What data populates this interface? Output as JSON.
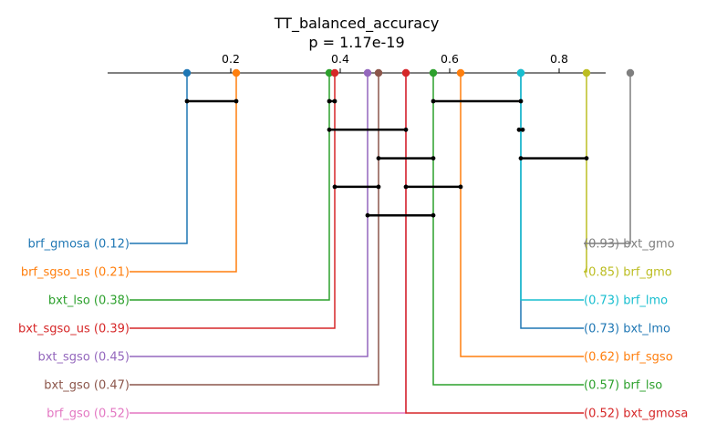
{
  "chart_data": {
    "type": "critical-difference-diagram",
    "title": "TT_balanced_accuracy",
    "subtitle": "p = 1.17e-19",
    "axis": {
      "ticks": [
        0.2,
        0.4,
        0.6,
        0.8
      ],
      "tick_labels": [
        "0.2",
        "0.4",
        "0.6",
        "0.8"
      ]
    },
    "methods": [
      {
        "name": "brf_gmosa",
        "score": 0.12,
        "label": "brf_gmosa (0.12)",
        "color": "#1f77b4",
        "side": "left"
      },
      {
        "name": "brf_sgso_us",
        "score": 0.21,
        "label": "brf_sgso_us (0.21)",
        "color": "#ff7f0e",
        "side": "left"
      },
      {
        "name": "bxt_lso",
        "score": 0.38,
        "label": "bxt_lso (0.38)",
        "color": "#2ca02c",
        "side": "left"
      },
      {
        "name": "bxt_sgso_us",
        "score": 0.39,
        "label": "bxt_sgso_us (0.39)",
        "color": "#d62728",
        "side": "left"
      },
      {
        "name": "bxt_sgso",
        "score": 0.45,
        "label": "bxt_sgso (0.45)",
        "color": "#9467bd",
        "side": "left"
      },
      {
        "name": "bxt_gso",
        "score": 0.47,
        "label": "bxt_gso (0.47)",
        "color": "#8c564b",
        "side": "left"
      },
      {
        "name": "brf_gso",
        "score": 0.52,
        "label": "brf_gso (0.52)",
        "color": "#e377c2",
        "side": "left"
      },
      {
        "name": "bxt_gmosa",
        "score": 0.52,
        "label": "(0.52) bxt_gmosa",
        "color": "#d62728",
        "side": "right"
      },
      {
        "name": "brf_lso",
        "score": 0.57,
        "label": "(0.57) brf_lso",
        "color": "#2ca02c",
        "side": "right"
      },
      {
        "name": "brf_sgso",
        "score": 0.62,
        "label": "(0.62) brf_sgso",
        "color": "#ff7f0e",
        "side": "right"
      },
      {
        "name": "bxt_lmo",
        "score": 0.73,
        "label": "(0.73) bxt_lmo",
        "color": "#1f77b4",
        "side": "right"
      },
      {
        "name": "brf_lmo",
        "score": 0.73,
        "label": "(0.73) brf_lmo",
        "color": "#17becf",
        "side": "right"
      },
      {
        "name": "brf_gmo",
        "score": 0.85,
        "label": "(0.85) brf_gmo",
        "color": "#bcbd22",
        "side": "right"
      },
      {
        "name": "bxt_gmo",
        "score": 0.93,
        "label": "(0.93) bxt_gmo",
        "color": "#7f7f7f",
        "side": "right"
      }
    ],
    "cliques": [
      {
        "from": 0.12,
        "to": 0.21
      },
      {
        "from": 0.38,
        "to": 0.39
      },
      {
        "from": 0.57,
        "to": 0.73
      },
      {
        "from": 0.38,
        "to": 0.52
      },
      {
        "from": 0.73,
        "to": 0.73
      },
      {
        "from": 0.47,
        "to": 0.57
      },
      {
        "from": 0.73,
        "to": 0.85
      },
      {
        "from": 0.39,
        "to": 0.47
      },
      {
        "from": 0.52,
        "to": 0.62
      },
      {
        "from": 0.45,
        "to": 0.57
      }
    ]
  }
}
